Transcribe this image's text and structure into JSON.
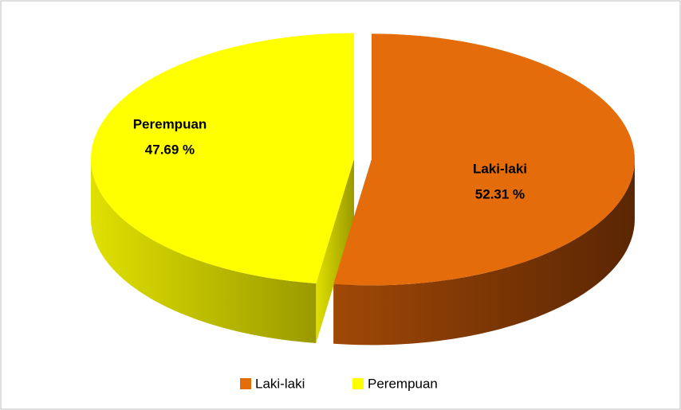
{
  "chart_data": {
    "type": "pie",
    "categories": [
      "Laki-laki",
      "Perempuan"
    ],
    "values": [
      52.31,
      47.69
    ],
    "value_labels": [
      "52.31 %",
      "47.69 %"
    ],
    "colors": [
      "#e46c0a",
      "#ffff00"
    ],
    "legend": "bottom"
  }
}
